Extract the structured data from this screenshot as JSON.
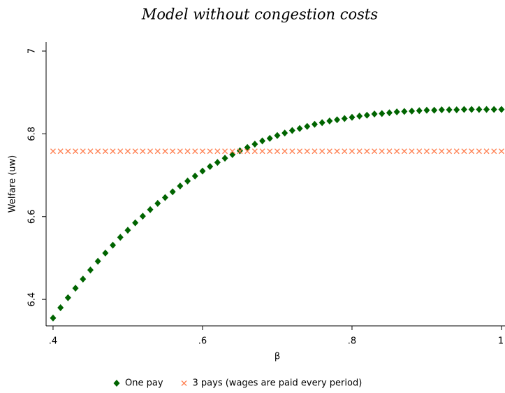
{
  "chart_data": {
    "type": "scatter",
    "title": "Model without congestion costs",
    "x_label": "β",
    "y_label": "Welfare (uw)",
    "x": [
      0.4,
      0.41,
      0.42,
      0.43,
      0.44,
      0.45,
      0.46,
      0.47,
      0.48,
      0.49,
      0.5,
      0.51,
      0.52,
      0.53,
      0.54,
      0.55,
      0.56,
      0.57,
      0.58,
      0.59,
      0.6,
      0.61,
      0.62,
      0.63,
      0.64,
      0.65,
      0.66,
      0.67,
      0.68,
      0.69,
      0.7,
      0.71,
      0.72,
      0.73,
      0.74,
      0.75,
      0.76,
      0.77,
      0.78,
      0.79,
      0.8,
      0.81,
      0.82,
      0.83,
      0.84,
      0.85,
      0.86,
      0.87,
      0.88,
      0.89,
      0.9,
      0.91,
      0.92,
      0.93,
      0.94,
      0.95,
      0.96,
      0.97,
      0.98,
      0.99,
      1
    ],
    "series": [
      {
        "name": "One pay",
        "color": "#006400",
        "marker": "diamond",
        "values": [
          6.355,
          6.38,
          6.404,
          6.427,
          6.449,
          6.471,
          6.492,
          6.512,
          6.531,
          6.55,
          6.567,
          6.585,
          6.601,
          6.617,
          6.632,
          6.646,
          6.66,
          6.674,
          6.686,
          6.698,
          6.71,
          6.721,
          6.731,
          6.741,
          6.75,
          6.759,
          6.767,
          6.775,
          6.783,
          6.789,
          6.796,
          6.802,
          6.808,
          6.813,
          6.818,
          6.823,
          6.827,
          6.831,
          6.834,
          6.837,
          6.84,
          6.843,
          6.845,
          6.848,
          6.849,
          6.851,
          6.853,
          6.854,
          6.855,
          6.856,
          6.857,
          6.857,
          6.858,
          6.858,
          6.858,
          6.859,
          6.859,
          6.859,
          6.859,
          6.859,
          6.859
        ]
      },
      {
        "name": "3 pays (wages are paid every period)",
        "color": "#ff7f50",
        "marker": "x",
        "values": [
          6.758,
          6.758,
          6.758,
          6.758,
          6.758,
          6.758,
          6.758,
          6.758,
          6.758,
          6.758,
          6.758,
          6.758,
          6.758,
          6.758,
          6.758,
          6.758,
          6.758,
          6.758,
          6.758,
          6.758,
          6.758,
          6.758,
          6.758,
          6.758,
          6.758,
          6.758,
          6.758,
          6.758,
          6.758,
          6.758,
          6.758,
          6.758,
          6.758,
          6.758,
          6.758,
          6.758,
          6.758,
          6.758,
          6.758,
          6.758,
          6.758,
          6.758,
          6.758,
          6.758,
          6.758,
          6.758,
          6.758,
          6.758,
          6.758,
          6.758,
          6.758,
          6.758,
          6.758,
          6.758,
          6.758,
          6.758,
          6.758,
          6.758,
          6.758,
          6.758,
          6.758
        ]
      }
    ],
    "xlim": [
      0.3907,
      1.0047
    ],
    "xticks": [
      {
        "value": 0.4,
        "label": ".4"
      },
      {
        "value": 0.6,
        "label": ".6"
      },
      {
        "value": 0.8,
        "label": ".8"
      },
      {
        "value": 1,
        "label": "1"
      }
    ],
    "ylim": [
      6.336,
      7.022
    ],
    "yticks": [
      6.4,
      6.6,
      6.8,
      7
    ],
    "grid": false,
    "legend": "bottom"
  }
}
